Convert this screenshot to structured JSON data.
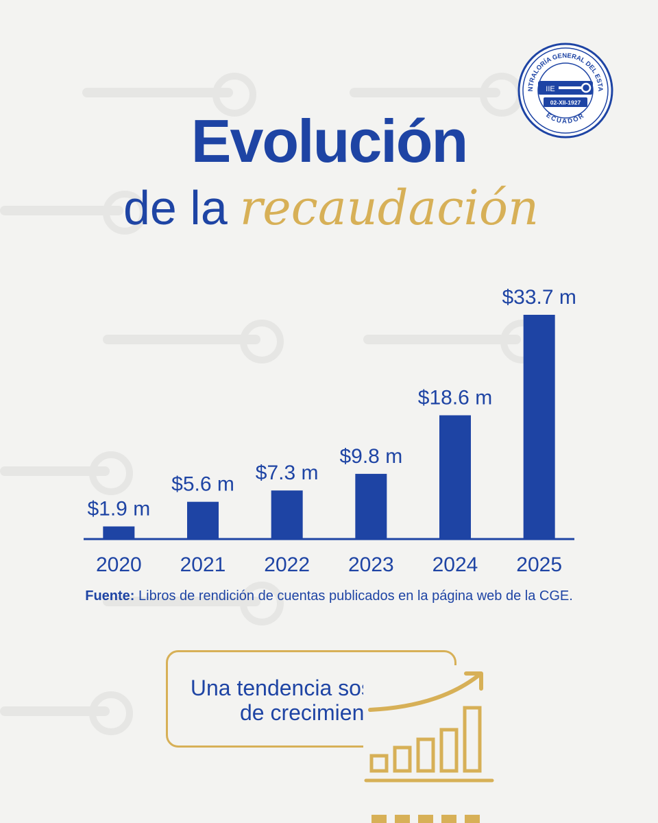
{
  "seal": {
    "ring_text": "CONTRALORÍA GENERAL DEL ESTADO",
    "date": "02-XII-1927",
    "country": "ECUADOR",
    "monogram": "IIE"
  },
  "title": {
    "line1": "Evolución",
    "line2_plain": "de la",
    "line2_script": "recaudación"
  },
  "chart_data": {
    "type": "bar",
    "categories": [
      "2020",
      "2021",
      "2022",
      "2023",
      "2024",
      "2025"
    ],
    "values": [
      1.9,
      5.6,
      7.3,
      9.8,
      18.6,
      33.7
    ],
    "data_labels": [
      "$1.9 m",
      "$5.6 m",
      "$7.3 m",
      "$9.8 m",
      "$18.6 m",
      "$33.7 m"
    ],
    "xlabel": "",
    "ylabel": "",
    "ylim": [
      0,
      35
    ],
    "grid": false,
    "colors": {
      "bar": "#1e44a4",
      "axis": "#1e44a4"
    }
  },
  "source": {
    "label": "Fuente:",
    "text": "Libros de rendición de cuentas publicados en la página web de la CGE."
  },
  "callout": {
    "line1": "Una tendencia sostenida",
    "line2": "de crecimiento",
    "icon": "growth-chart-icon"
  },
  "colors": {
    "primary_blue": "#1e44a4",
    "accent_gold": "#d7b057",
    "background": "#f3f3f1"
  }
}
